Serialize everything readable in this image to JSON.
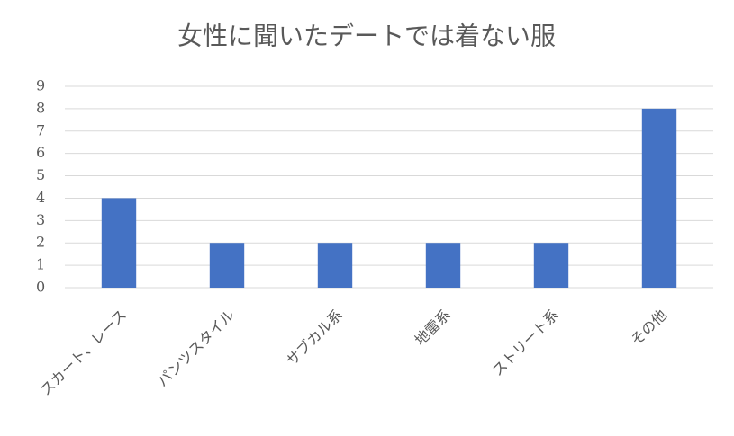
{
  "chart_data": {
    "type": "bar",
    "title": "女性に聞いたデートでは着ない服",
    "categories": [
      "スカート、レース",
      "パンツスタイル",
      "サブカル系",
      "地雷系",
      "ストリート系",
      "その他"
    ],
    "values": [
      4,
      2,
      2,
      2,
      2,
      8
    ],
    "color": "#4472c4",
    "ylim": [
      0,
      9
    ],
    "yticks": [
      0,
      1,
      2,
      3,
      4,
      5,
      6,
      7,
      8,
      9
    ],
    "grid": true
  }
}
